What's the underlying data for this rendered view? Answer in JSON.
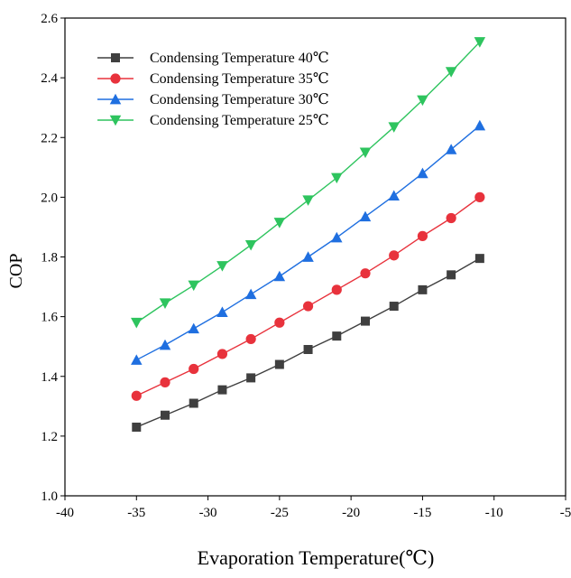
{
  "chart_data": {
    "type": "line",
    "title": "",
    "xlabel": "Evaporation Temperature(℃)",
    "ylabel": "COP",
    "xlim": [
      -40,
      -5
    ],
    "ylim": [
      1.0,
      2.6
    ],
    "x_ticks": [
      -40,
      -35,
      -30,
      -25,
      -20,
      -15,
      -10,
      -5
    ],
    "y_ticks": [
      1.0,
      1.2,
      1.4,
      1.6,
      1.8,
      2.0,
      2.2,
      2.4,
      2.6
    ],
    "x_tick_labels": [
      "-40",
      "-35",
      "-30",
      "-25",
      "-20",
      "-15",
      "-10",
      "-5"
    ],
    "y_tick_labels": [
      "1.0",
      "1.2",
      "1.4",
      "1.6",
      "1.8",
      "2.0",
      "2.2",
      "2.4",
      "2.6"
    ],
    "grid": false,
    "legend_position": "top-left",
    "x": [
      -35,
      -33,
      -31,
      -29,
      -27,
      -25,
      -23,
      -21,
      -19,
      -17,
      -15,
      -13,
      -11
    ],
    "series": [
      {
        "name": "Condensing Temperature 40℃",
        "marker": "square",
        "color": "#3f3f3f",
        "values": [
          1.23,
          1.27,
          1.31,
          1.355,
          1.395,
          1.44,
          1.49,
          1.535,
          1.585,
          1.635,
          1.69,
          1.74,
          1.795
        ]
      },
      {
        "name": "Condensing Temperature 35℃",
        "marker": "circle",
        "color": "#e8323c",
        "values": [
          1.335,
          1.38,
          1.425,
          1.475,
          1.525,
          1.58,
          1.635,
          1.69,
          1.745,
          1.805,
          1.87,
          1.93,
          2.0
        ]
      },
      {
        "name": "Condensing Temperature 30℃",
        "marker": "triangle-up",
        "color": "#1f6fe0",
        "values": [
          1.455,
          1.505,
          1.56,
          1.615,
          1.675,
          1.735,
          1.8,
          1.865,
          1.935,
          2.005,
          2.08,
          2.16,
          2.24
        ]
      },
      {
        "name": "Condensing Temperature 25℃",
        "marker": "triangle-down",
        "color": "#2ec45e",
        "values": [
          1.58,
          1.645,
          1.705,
          1.77,
          1.84,
          1.915,
          1.99,
          2.065,
          2.15,
          2.235,
          2.325,
          2.42,
          2.52
        ]
      }
    ]
  }
}
